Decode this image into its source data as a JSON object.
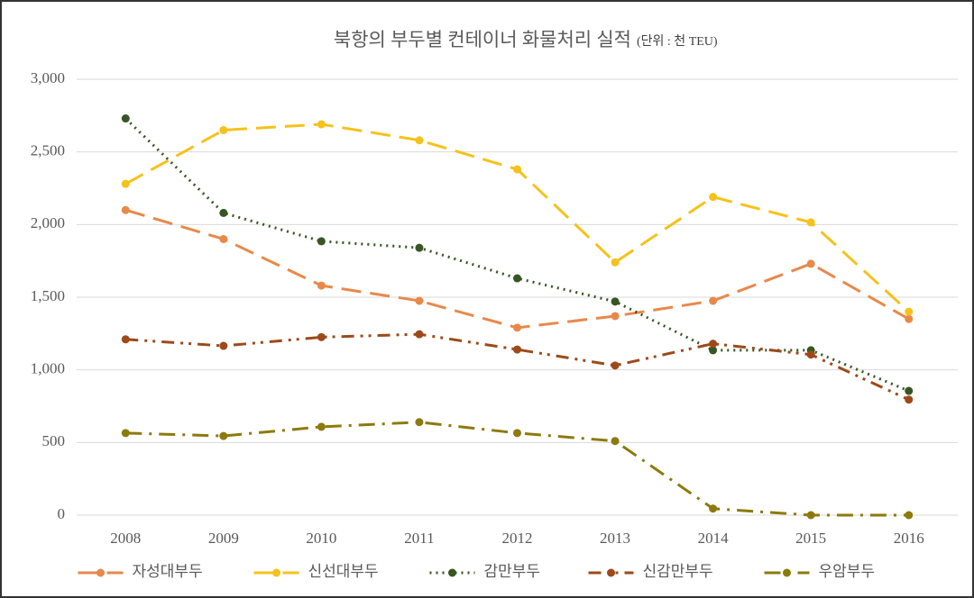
{
  "chart_data": {
    "type": "line",
    "title": "북항의 부두별 컨테이너 화물처리 실적",
    "subtitle": "(단위 : 천 TEU)",
    "categories": [
      "2008",
      "2009",
      "2010",
      "2011",
      "2012",
      "2013",
      "2014",
      "2015",
      "2016"
    ],
    "series": [
      {
        "name": "자성대부두",
        "color": "#e8894a",
        "dash": "dash",
        "values": [
          2100,
          1900,
          1580,
          1475,
          1290,
          1370,
          1475,
          1730,
          1350
        ]
      },
      {
        "name": "신선대부두",
        "color": "#f5c21b",
        "dash": "dash",
        "values": [
          2280,
          2650,
          2690,
          2580,
          2380,
          1740,
          2190,
          2015,
          1400
        ]
      },
      {
        "name": "감만부두",
        "color": "#375623",
        "dash": "dot",
        "values": [
          2730,
          2080,
          1885,
          1840,
          1630,
          1470,
          1135,
          1135,
          855
        ]
      },
      {
        "name": "신감만부두",
        "color": "#9c4a1a",
        "dash": "dashdotdot",
        "values": [
          1210,
          1165,
          1225,
          1245,
          1140,
          1030,
          1180,
          1105,
          795
        ]
      },
      {
        "name": "우암부두",
        "color": "#8c7a0c",
        "dash": "dashdot",
        "values": [
          565,
          545,
          608,
          640,
          565,
          510,
          45,
          0,
          0
        ]
      }
    ],
    "ylim": [
      0,
      3000
    ],
    "yticks": [
      0,
      500,
      {
        "value": 1000,
        "label": "1,000"
      },
      {
        "value": 1500,
        "label": "1,500"
      },
      {
        "value": 2000,
        "label": "2,000"
      },
      {
        "value": 2500,
        "label": "2,500"
      },
      {
        "value": 3000,
        "label": "3,000"
      }
    ],
    "grid": true,
    "legend": "bottom"
  }
}
